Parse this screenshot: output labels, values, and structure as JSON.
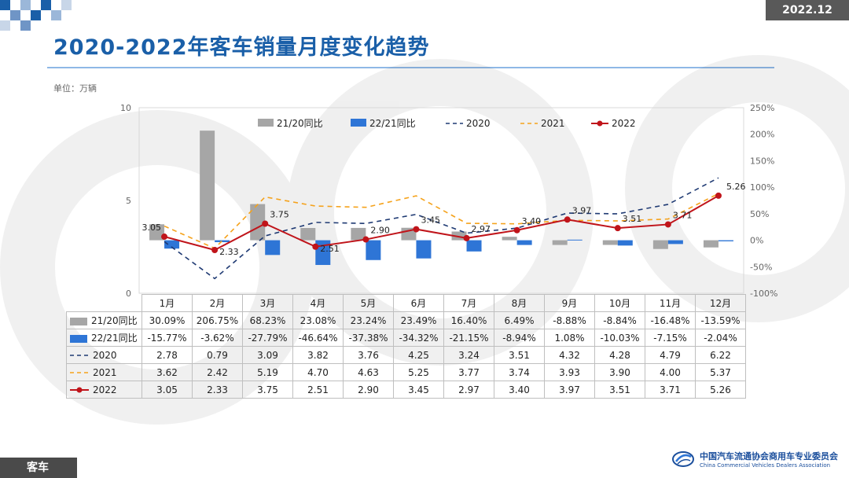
{
  "header": {
    "date_badge": "2022.12",
    "title": "2020-2022年客车销量月度变化趋势",
    "unit": "单位：万辆"
  },
  "footer": {
    "section_tag": "客车",
    "org_name_cn": "中国汽车流通协会商用车专业委员会",
    "org_name_en": "China Commercial Vehicles Dealers Association"
  },
  "colors": {
    "brand": "#1a5fa8",
    "bar_21_20": "#a6a6a6",
    "bar_22_21": "#2e75d6",
    "line_2020": "#1f3a73",
    "line_2021": "#f5a21b",
    "line_2022": "#c0141a"
  },
  "chart_data": {
    "type": "bar+line",
    "categories": [
      "1月",
      "2月",
      "3月",
      "4月",
      "5月",
      "6月",
      "7月",
      "8月",
      "9月",
      "10月",
      "11月",
      "12月"
    ],
    "left_axis": {
      "range": [
        0,
        10
      ],
      "ticks": [
        "0",
        "5",
        "10"
      ]
    },
    "right_axis": {
      "range": [
        -100,
        250
      ],
      "ticks": [
        "-100%",
        "-50%",
        "0%",
        "50%",
        "100%",
        "150%",
        "200%",
        "250%"
      ]
    },
    "bar_series": [
      {
        "name": "21/20同比",
        "axis": "right",
        "values": [
          30.09,
          206.75,
          68.23,
          23.08,
          23.24,
          23.49,
          16.4,
          6.49,
          -8.88,
          -8.84,
          -16.48,
          -13.59
        ],
        "labels": [
          "30.09%",
          "206.75%",
          "68.23%",
          "23.08%",
          "23.24%",
          "23.49%",
          "16.40%",
          "6.49%",
          "-8.88%",
          "-8.84%",
          "-16.48%",
          "-13.59%"
        ]
      },
      {
        "name": "22/21同比",
        "axis": "right",
        "values": [
          -15.77,
          -3.62,
          -27.79,
          -46.64,
          -37.38,
          -34.32,
          -21.15,
          -8.94,
          1.08,
          -10.03,
          -7.15,
          -2.04
        ],
        "labels": [
          "-15.77%",
          "-3.62%",
          "-27.79%",
          "-46.64%",
          "-37.38%",
          "-34.32%",
          "-21.15%",
          "-8.94%",
          "1.08%",
          "-10.03%",
          "-7.15%",
          "-2.04%"
        ]
      }
    ],
    "line_series": [
      {
        "name": "2020",
        "axis": "left",
        "style": "dashed",
        "values": [
          2.78,
          0.79,
          3.09,
          3.82,
          3.76,
          4.25,
          3.24,
          3.51,
          4.32,
          4.28,
          4.79,
          6.22
        ],
        "labels": [
          "2.78",
          "0.79",
          "3.09",
          "3.82",
          "3.76",
          "4.25",
          "3.24",
          "3.51",
          "4.32",
          "4.28",
          "4.79",
          "6.22"
        ]
      },
      {
        "name": "2021",
        "axis": "left",
        "style": "dashed",
        "values": [
          3.62,
          2.42,
          5.19,
          4.7,
          4.63,
          5.25,
          3.77,
          3.74,
          3.93,
          3.9,
          4.0,
          5.37
        ],
        "labels": [
          "3.62",
          "2.42",
          "5.19",
          "4.70",
          "4.63",
          "5.25",
          "3.77",
          "3.74",
          "3.93",
          "3.90",
          "4.00",
          "5.37"
        ]
      },
      {
        "name": "2022",
        "axis": "left",
        "style": "solid-marker",
        "values": [
          3.05,
          2.33,
          3.75,
          2.51,
          2.9,
          3.45,
          2.97,
          3.4,
          3.97,
          3.51,
          3.71,
          5.26
        ],
        "labels": [
          "3.05",
          "2.33",
          "3.75",
          "2.51",
          "2.90",
          "3.45",
          "2.97",
          "3.40",
          "3.97",
          "3.51",
          "3.71",
          "5.26"
        ]
      }
    ]
  }
}
